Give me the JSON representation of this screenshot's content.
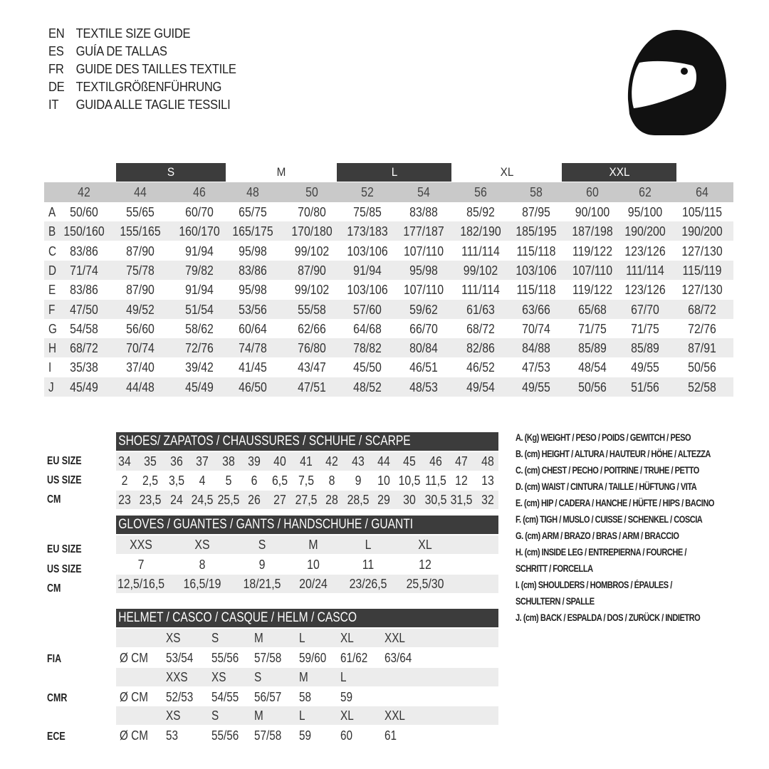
{
  "titles": [
    {
      "code": "EN",
      "text": "TEXTILE SIZE GUIDE"
    },
    {
      "code": "ES",
      "text": "GUÍA DE TALLAS"
    },
    {
      "code": "FR",
      "text": "GUIDE DES TAILLES TEXTILE"
    },
    {
      "code": "DE",
      "text": "TEXTILGRÖßENFÜHRUNG"
    },
    {
      "code": "IT",
      "text": "GUIDA ALLE TAGLIE TESSILI"
    }
  ],
  "icon": "racing-helmet-icon",
  "textile": {
    "size_groups": [
      "S",
      "M",
      "L",
      "XL",
      "XXL"
    ],
    "sizes": [
      "42",
      "44",
      "46",
      "48",
      "50",
      "52",
      "54",
      "56",
      "58",
      "60",
      "62",
      "64"
    ],
    "rows": [
      {
        "label": "A",
        "values": [
          "50/60",
          "55/65",
          "60/70",
          "65/75",
          "70/80",
          "75/85",
          "83/88",
          "85/92",
          "87/95",
          "90/100",
          "95/100",
          "105/115"
        ]
      },
      {
        "label": "B",
        "values": [
          "150/160",
          "155/165",
          "160/170",
          "165/175",
          "170/180",
          "173/183",
          "177/187",
          "182/190",
          "185/195",
          "187/198",
          "190/200",
          "190/200"
        ]
      },
      {
        "label": "C",
        "values": [
          "83/86",
          "87/90",
          "91/94",
          "95/98",
          "99/102",
          "103/106",
          "107/110",
          "111/114",
          "115/118",
          "119/122",
          "123/126",
          "127/130"
        ]
      },
      {
        "label": "D",
        "values": [
          "71/74",
          "75/78",
          "79/82",
          "83/86",
          "87/90",
          "91/94",
          "95/98",
          "99/102",
          "103/106",
          "107/110",
          "111/114",
          "115/119"
        ]
      },
      {
        "label": "E",
        "values": [
          "83/86",
          "87/90",
          "91/94",
          "95/98",
          "99/102",
          "103/106",
          "107/110",
          "111/114",
          "115/118",
          "119/122",
          "123/126",
          "127/130"
        ]
      },
      {
        "label": "F",
        "values": [
          "47/50",
          "49/52",
          "51/54",
          "53/56",
          "55/58",
          "57/60",
          "59/62",
          "61/63",
          "63/66",
          "65/68",
          "67/70",
          "68/72"
        ]
      },
      {
        "label": "G",
        "values": [
          "54/58",
          "56/60",
          "58/62",
          "60/64",
          "62/66",
          "64/68",
          "66/70",
          "68/72",
          "70/74",
          "71/75",
          "71/75",
          "72/76"
        ]
      },
      {
        "label": "H",
        "values": [
          "68/72",
          "70/74",
          "72/76",
          "74/78",
          "76/80",
          "78/82",
          "80/84",
          "82/86",
          "84/88",
          "85/89",
          "85/89",
          "87/91"
        ]
      },
      {
        "label": "I",
        "values": [
          "35/38",
          "37/40",
          "39/42",
          "41/45",
          "43/47",
          "45/50",
          "46/51",
          "46/52",
          "47/53",
          "48/54",
          "49/55",
          "50/56"
        ]
      },
      {
        "label": "J",
        "values": [
          "45/49",
          "44/48",
          "45/49",
          "46/50",
          "47/51",
          "48/52",
          "48/53",
          "49/54",
          "49/55",
          "50/56",
          "51/56",
          "52/58"
        ]
      }
    ]
  },
  "shoes": {
    "title": "SHOES/ ZAPATOS / CHAUSSURES / SCHUHE / SCARPE",
    "rows": [
      {
        "label": "EU SIZE",
        "values": [
          "34",
          "35",
          "36",
          "37",
          "38",
          "39",
          "40",
          "41",
          "42",
          "43",
          "44",
          "45",
          "46",
          "47",
          "48"
        ]
      },
      {
        "label": "US SIZE",
        "values": [
          "2",
          "2,5",
          "3,5",
          "4",
          "5",
          "6",
          "6,5",
          "7,5",
          "8",
          "9",
          "10",
          "10,5",
          "11,5",
          "12",
          "13"
        ]
      },
      {
        "label": "CM",
        "values": [
          "23",
          "23,5",
          "24",
          "24,5",
          "25,5",
          "26",
          "27",
          "27,5",
          "28",
          "28,5",
          "29",
          "30",
          "30,5",
          "31,5",
          "32"
        ]
      }
    ]
  },
  "gloves": {
    "title": "GLOVES / GUANTES / GANTS / HANDSCHUHE / GUANTI",
    "rows": [
      {
        "label": "EU SIZE",
        "values": [
          "XXS",
          "XS",
          "S",
          "M",
          "L",
          "XL"
        ]
      },
      {
        "label": "US SIZE",
        "values": [
          "7",
          "8",
          "9",
          "10",
          "11",
          "12"
        ]
      },
      {
        "label": "CM",
        "values": [
          "12,5/16,5",
          "16,5/19",
          "18/21,5",
          "20/24",
          "23/26,5",
          "25,5/30"
        ]
      }
    ]
  },
  "helmet": {
    "title": "HELMET / CASCO / CASQUE / HELM / CASCO",
    "unit": "Ø CM",
    "standards": [
      {
        "label": "FIA",
        "sizes": [
          "XS",
          "S",
          "M",
          "L",
          "XL",
          "XXL"
        ],
        "values": [
          "53/54",
          "55/56",
          "57/58",
          "59/60",
          "61/62",
          "63/64"
        ]
      },
      {
        "label": "CMR",
        "sizes": [
          "XXS",
          "XS",
          "S",
          "M",
          "L"
        ],
        "values": [
          "52/53",
          "54/55",
          "56/57",
          "58",
          "59"
        ]
      },
      {
        "label": "ECE",
        "sizes": [
          "XS",
          "S",
          "M",
          "L",
          "XL",
          "XXL"
        ],
        "values": [
          "53",
          "55/56",
          "57/58",
          "59",
          "60",
          "61"
        ]
      }
    ]
  },
  "legend": [
    "A. (Kg) WEIGHT / PESO / POIDS / GEWITCH / PESO",
    "B. (cm) HEIGHT / ALTURA / HAUTEUR / HÖHE / ALTEZZA",
    "C. (cm) CHEST / PECHO / POITRINE / TRUHE / PETTO",
    "D. (cm) WAIST / CINTURA / TAILLE / HÜFTUNG / VITA",
    "E. (cm) HIP / CADERA / HANCHE / HÜFTE / HIPS /  BACINO",
    "F.  (cm) TIGH / MUSLO / CUISSE / SCHENKEL / COSCIA",
    "G. (cm) ARM  / BRAZO / BRAS / ARM / BRACCIO",
    "H. (cm) INSIDE LEG / ENTREPIERNA / FOURCHE /",
    "SCHRITT / FORCELLA",
    "I.  (cm) SHOULDERS / HOMBROS / ÉPAULES /",
    "SCHULTERN / SPALLE",
    "J. (cm) BACK / ESPALDA / DOS / ZURÜCK / INDIETRO"
  ]
}
